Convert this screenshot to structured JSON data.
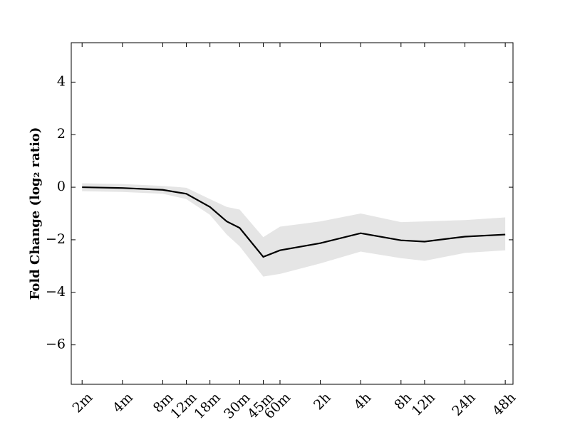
{
  "chart_data": {
    "type": "line",
    "ylabel": "Fold Change (log₂ ratio)",
    "xscale": "log",
    "x": [
      2,
      4,
      8,
      12,
      18,
      24,
      30,
      45,
      60,
      120,
      240,
      480,
      720,
      1440,
      2880
    ],
    "series": [
      {
        "color": "#000000",
        "values": [
          0.0,
          -0.03,
          -0.1,
          -0.25,
          -0.75,
          -1.3,
          -1.55,
          -2.65,
          -2.4,
          -2.13,
          -1.75,
          -2.02,
          -2.07,
          -1.88,
          -1.8
        ]
      }
    ],
    "band": {
      "color": "#e5e5e5",
      "upper": [
        0.15,
        0.12,
        0.05,
        -0.02,
        -0.45,
        -0.75,
        -0.85,
        -1.9,
        -1.5,
        -1.3,
        -1.0,
        -1.33,
        -1.3,
        -1.25,
        -1.15
      ],
      "lower": [
        -0.15,
        -0.18,
        -0.25,
        -0.45,
        -1.05,
        -1.8,
        -2.25,
        -3.4,
        -3.3,
        -2.9,
        -2.45,
        -2.7,
        -2.8,
        -2.5,
        -2.4
      ]
    },
    "xlim": [
      1.66,
      3290
    ],
    "xticks": [
      {
        "value": 2,
        "label": "2m"
      },
      {
        "value": 4,
        "label": "4m"
      },
      {
        "value": 8,
        "label": "8m"
      },
      {
        "value": 12,
        "label": "12m"
      },
      {
        "value": 18,
        "label": "18m"
      },
      {
        "value": 30,
        "label": "30m"
      },
      {
        "value": 45,
        "label": "45m"
      },
      {
        "value": 60,
        "label": "60m"
      },
      {
        "value": 120,
        "label": "2h"
      },
      {
        "value": 240,
        "label": "4h"
      },
      {
        "value": 480,
        "label": "8h"
      },
      {
        "value": 720,
        "label": "12h"
      },
      {
        "value": 1440,
        "label": "24h"
      },
      {
        "value": 2880,
        "label": "48h"
      }
    ],
    "ylim": [
      -7.5,
      5.5
    ],
    "yticks": [
      {
        "value": -6,
        "label": "−6"
      },
      {
        "value": -4,
        "label": "−4"
      },
      {
        "value": -2,
        "label": "−2"
      },
      0,
      2,
      4
    ]
  }
}
